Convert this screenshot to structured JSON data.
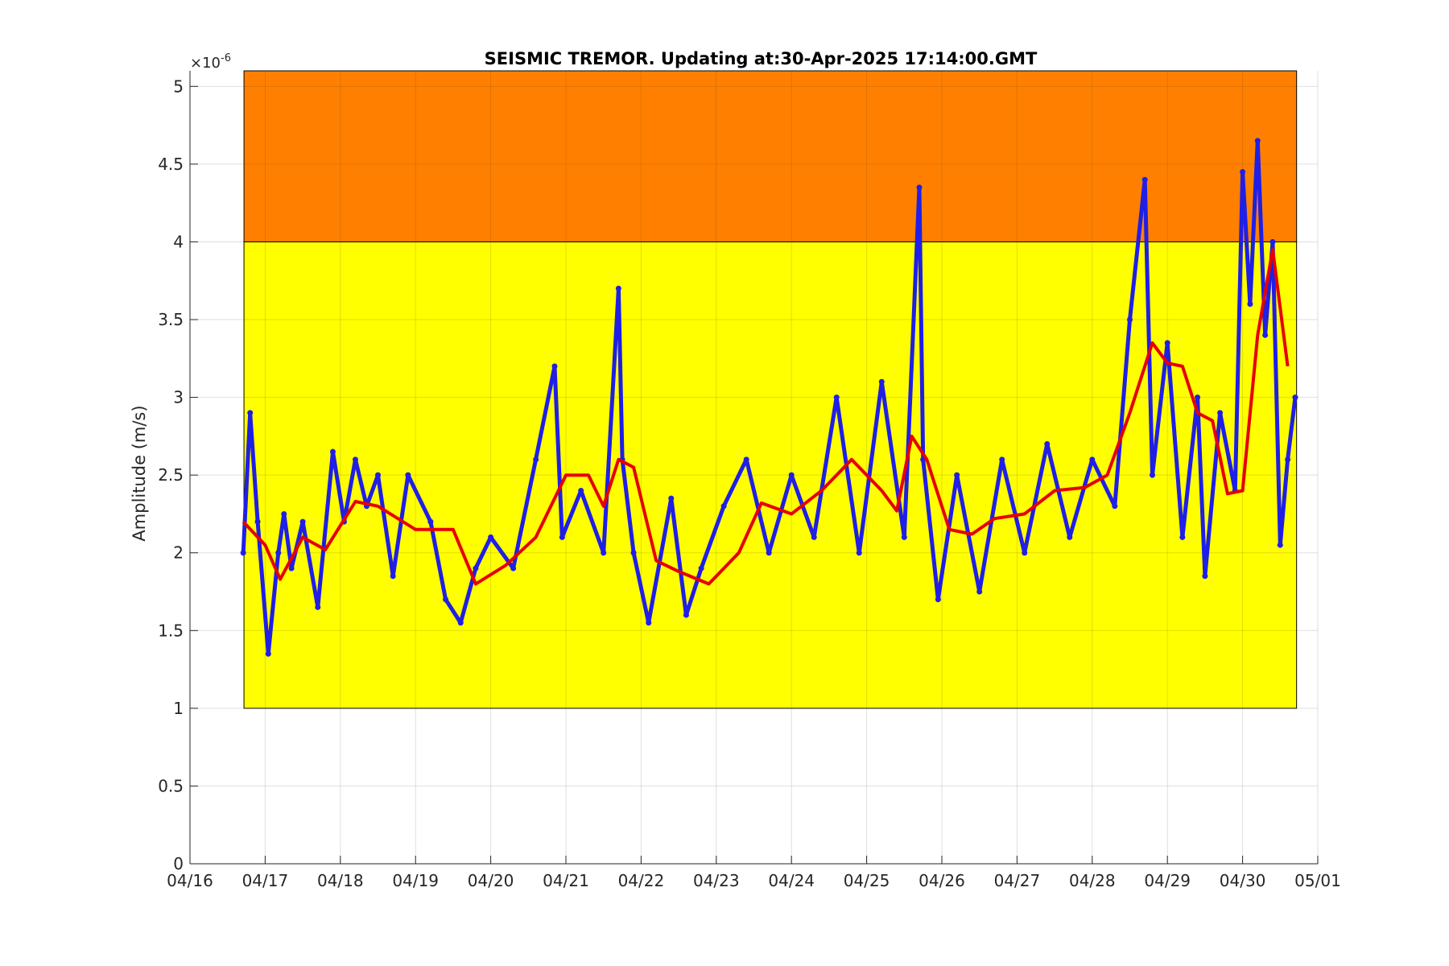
{
  "chart_data": {
    "type": "line",
    "title": "SEISMIC TREMOR. Updating at:30-Apr-2025 17:14:00.GMT",
    "xlabel": "",
    "ylabel": "Amplitude (m/s)",
    "y_exponent_label": "×10",
    "y_exponent": "-6",
    "xlim": [
      "2025-04-16",
      "2025-05-01"
    ],
    "ylim": [
      0,
      5.1
    ],
    "grid": true,
    "x_ticks": [
      "2025-04-16",
      "2025-04-17",
      "2025-04-18",
      "2025-04-19",
      "2025-04-20",
      "2025-04-21",
      "2025-04-22",
      "2025-04-23",
      "2025-04-24",
      "2025-04-25",
      "2025-04-26",
      "2025-04-27",
      "2025-04-28",
      "2025-04-29",
      "2025-04-30",
      "2025-05-01"
    ],
    "x_tick_labels": [
      "04/16",
      "04/17",
      "04/18",
      "04/19",
      "04/20",
      "04/21",
      "04/22",
      "04/23",
      "04/24",
      "04/25",
      "04/26",
      "04/27",
      "04/28",
      "04/29",
      "04/30",
      "05/01"
    ],
    "y_ticks": [
      0,
      0.5,
      1,
      1.5,
      2,
      2.5,
      3,
      3.5,
      4,
      4.5,
      5
    ],
    "y_tick_labels": [
      "0",
      "0.5",
      "1",
      "1.5",
      "2",
      "2.5",
      "3",
      "3.5",
      "4",
      "4.5",
      "5"
    ],
    "bands": [
      {
        "level": "yellow",
        "y_range": [
          1,
          4
        ],
        "x_range": [
          "2025-04-16 17:14",
          "2025-04-30 17:14"
        ],
        "color": "#ffff00"
      },
      {
        "level": "orange",
        "y_range": [
          4,
          5.1
        ],
        "x_range": [
          "2025-04-16 17:14",
          "2025-04-30 17:14"
        ],
        "color": "#ff8000"
      }
    ],
    "series": [
      {
        "kind": "raw",
        "color": "#1f1fe6",
        "x": [
          "2025-04-16 17:00",
          "2025-04-16 19:12",
          "2025-04-16 21:36",
          "2025-04-17 01:00",
          "2025-04-17 04:12",
          "2025-04-17 06:00",
          "2025-04-17 08:24",
          "2025-04-17 12:00",
          "2025-04-17 16:48",
          "2025-04-17 21:36",
          "2025-04-18 01:12",
          "2025-04-18 04:48",
          "2025-04-18 08:24",
          "2025-04-18 12:00",
          "2025-04-18 16:48",
          "2025-04-18 21:36",
          "2025-04-19 04:48",
          "2025-04-19 09:36",
          "2025-04-19 14:24",
          "2025-04-19 19:12",
          "2025-04-20 00:00",
          "2025-04-20 07:12",
          "2025-04-20 14:24",
          "2025-04-20 20:24",
          "2025-04-20 22:48",
          "2025-04-21 04:48",
          "2025-04-21 12:00",
          "2025-04-21 16:48",
          "2025-04-21 18:00",
          "2025-04-21 21:36",
          "2025-04-22 02:24",
          "2025-04-22 09:36",
          "2025-04-22 14:24",
          "2025-04-22 19:12",
          "2025-04-23 02:24",
          "2025-04-23 09:36",
          "2025-04-23 16:48",
          "2025-04-24 00:00",
          "2025-04-24 07:12",
          "2025-04-24 14:24",
          "2025-04-24 21:36",
          "2025-04-25 04:48",
          "2025-04-25 12:00",
          "2025-04-25 16:48",
          "2025-04-25 18:00",
          "2025-04-25 22:48",
          "2025-04-26 04:48",
          "2025-04-26 12:00",
          "2025-04-26 19:12",
          "2025-04-27 02:24",
          "2025-04-27 09:36",
          "2025-04-27 16:48",
          "2025-04-28 00:00",
          "2025-04-28 07:12",
          "2025-04-28 12:00",
          "2025-04-28 16:48",
          "2025-04-28 19:12",
          "2025-04-29 00:00",
          "2025-04-29 04:48",
          "2025-04-29 09:36",
          "2025-04-29 12:00",
          "2025-04-29 16:48",
          "2025-04-29 21:36",
          "2025-04-30 00:00",
          "2025-04-30 02:24",
          "2025-04-30 04:48",
          "2025-04-30 07:12",
          "2025-04-30 09:36",
          "2025-04-30 12:00",
          "2025-04-30 14:24",
          "2025-04-30 16:48"
        ],
        "y": [
          2.0,
          2.9,
          2.2,
          1.35,
          2.0,
          2.25,
          1.9,
          2.2,
          1.65,
          2.65,
          2.2,
          2.6,
          2.3,
          2.5,
          1.85,
          2.5,
          2.2,
          1.7,
          1.55,
          1.9,
          2.1,
          1.9,
          2.6,
          3.2,
          2.1,
          2.4,
          2.0,
          3.7,
          2.6,
          2.0,
          1.55,
          2.35,
          1.6,
          1.9,
          2.3,
          2.6,
          2.0,
          2.5,
          2.1,
          3.0,
          2.0,
          3.1,
          2.1,
          4.35,
          2.6,
          1.7,
          2.5,
          1.75,
          2.6,
          2.0,
          2.7,
          2.1,
          2.6,
          2.3,
          3.5,
          4.4,
          2.5,
          3.35,
          2.1,
          3.0,
          1.85,
          2.9,
          2.4,
          4.45,
          3.6,
          4.65,
          3.4,
          4.0,
          2.05,
          2.6,
          3.0
        ]
      },
      {
        "kind": "smoothed",
        "color": "#e60000",
        "x": [
          "2025-04-16 17:00",
          "2025-04-17 00:00",
          "2025-04-17 04:48",
          "2025-04-17 12:00",
          "2025-04-17 19:12",
          "2025-04-18 04:48",
          "2025-04-18 12:00",
          "2025-04-19 00:00",
          "2025-04-19 12:00",
          "2025-04-19 19:12",
          "2025-04-20 04:48",
          "2025-04-20 14:24",
          "2025-04-21 00:00",
          "2025-04-21 07:12",
          "2025-04-21 12:00",
          "2025-04-21 16:48",
          "2025-04-21 21:36",
          "2025-04-22 04:48",
          "2025-04-22 12:00",
          "2025-04-22 21:36",
          "2025-04-23 07:12",
          "2025-04-23 14:24",
          "2025-04-24 00:00",
          "2025-04-24 09:36",
          "2025-04-24 19:12",
          "2025-04-25 04:48",
          "2025-04-25 09:36",
          "2025-04-25 14:24",
          "2025-04-25 19:12",
          "2025-04-26 02:24",
          "2025-04-26 09:36",
          "2025-04-26 16:48",
          "2025-04-27 02:24",
          "2025-04-27 12:00",
          "2025-04-27 21:36",
          "2025-04-28 04:48",
          "2025-04-28 12:00",
          "2025-04-28 19:12",
          "2025-04-29 00:00",
          "2025-04-29 04:48",
          "2025-04-29 09:36",
          "2025-04-29 14:24",
          "2025-04-29 19:12",
          "2025-04-30 00:00",
          "2025-04-30 04:48",
          "2025-04-30 09:36",
          "2025-04-30 14:24"
        ],
        "y": [
          2.2,
          2.05,
          1.83,
          2.1,
          2.02,
          2.33,
          2.3,
          2.15,
          2.15,
          1.8,
          1.92,
          2.1,
          2.5,
          2.5,
          2.3,
          2.6,
          2.55,
          1.95,
          1.88,
          1.8,
          2.0,
          2.32,
          2.25,
          2.4,
          2.6,
          2.4,
          2.27,
          2.75,
          2.6,
          2.15,
          2.12,
          2.22,
          2.25,
          2.4,
          2.42,
          2.5,
          2.9,
          3.35,
          3.22,
          3.2,
          2.9,
          2.85,
          2.38,
          2.4,
          3.4,
          3.95,
          3.2
        ]
      }
    ]
  }
}
